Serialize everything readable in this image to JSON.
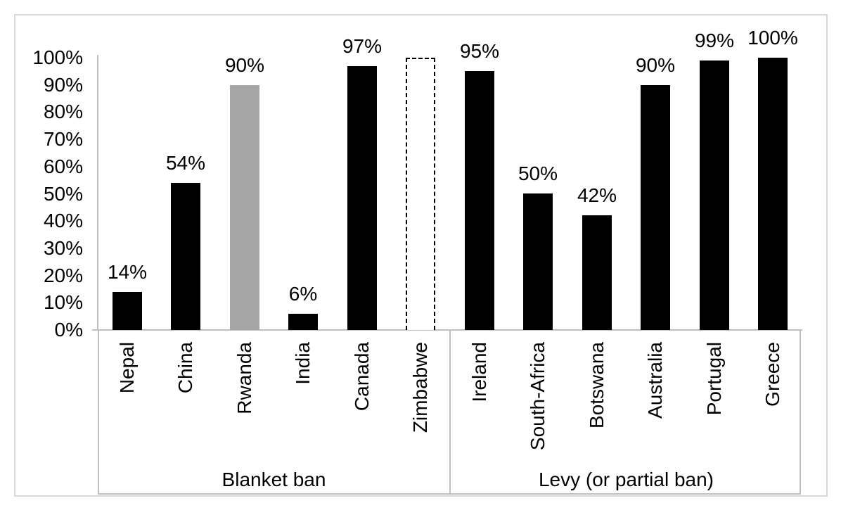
{
  "chart_data": {
    "type": "bar",
    "title": "",
    "xlabel": "",
    "ylabel": "",
    "ylim": [
      0,
      100
    ],
    "grid": false,
    "legend": "none",
    "y_ticks": [
      "0%",
      "10%",
      "20%",
      "30%",
      "40%",
      "50%",
      "60%",
      "70%",
      "80%",
      "90%",
      "100%"
    ],
    "y_tick_values": [
      0,
      10,
      20,
      30,
      40,
      50,
      60,
      70,
      80,
      90,
      100
    ],
    "groups": [
      {
        "label": "Blanket ban",
        "countries": [
          "Nepal",
          "China",
          "Rwanda",
          "India",
          "Canada",
          "Zimbabwe"
        ]
      },
      {
        "label": "Levy (or partial ban)",
        "countries": [
          "Ireland",
          "South-Africa",
          "Botswana",
          "Australia",
          "Portugal",
          "Greece"
        ]
      }
    ],
    "bars": [
      {
        "country": "Nepal",
        "value": 14,
        "label": "14%",
        "group": "Blanket ban",
        "style": "black"
      },
      {
        "country": "China",
        "value": 54,
        "label": "54%",
        "group": "Blanket ban",
        "style": "black"
      },
      {
        "country": "Rwanda",
        "value": 90,
        "label": "90%",
        "group": "Blanket ban",
        "style": "gray"
      },
      {
        "country": "India",
        "value": 6,
        "label": "6%",
        "group": "Blanket ban",
        "style": "black"
      },
      {
        "country": "Canada",
        "value": 97,
        "label": "97%",
        "group": "Blanket ban",
        "style": "black"
      },
      {
        "country": "Zimbabwe",
        "value": 100,
        "label": "",
        "group": "Blanket ban",
        "style": "dashed"
      },
      {
        "country": "Ireland",
        "value": 95,
        "label": "95%",
        "group": "Levy (or partial ban)",
        "style": "black"
      },
      {
        "country": "South-Africa",
        "value": 50,
        "label": "50%",
        "group": "Levy (or partial ban)",
        "style": "black"
      },
      {
        "country": "Botswana",
        "value": 42,
        "label": "42%",
        "group": "Levy (or partial ban)",
        "style": "black"
      },
      {
        "country": "Australia",
        "value": 90,
        "label": "90%",
        "group": "Levy (or partial ban)",
        "style": "black"
      },
      {
        "country": "Portugal",
        "value": 99,
        "label": "99%",
        "group": "Levy (or partial ban)",
        "style": "black"
      },
      {
        "country": "Greece",
        "value": 100,
        "label": "100%",
        "group": "Levy (or partial ban)",
        "style": "black"
      }
    ],
    "colors": {
      "bar_black": "#000000",
      "bar_gray": "#a6a6a6",
      "dashed_outline": "#000000",
      "axis_line": "#bfbfbf",
      "outer_border": "#d9d9d9",
      "text": "#000000",
      "background": "#ffffff"
    }
  }
}
